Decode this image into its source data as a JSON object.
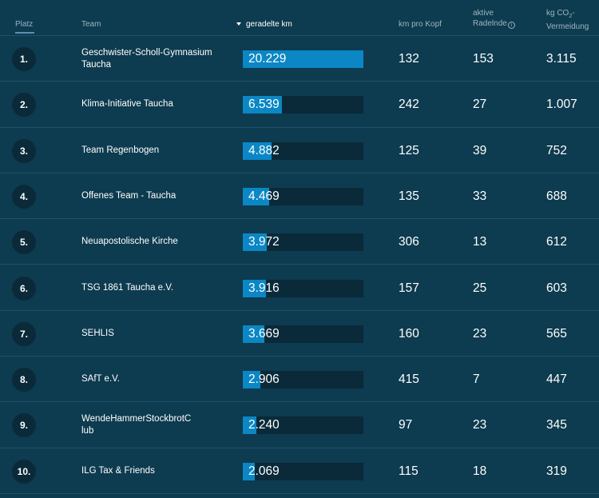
{
  "header": {
    "platz": "Platz",
    "team": "Team",
    "km": "geradelte km",
    "kopf": "km pro Kopf",
    "aktive_line1": "aktive",
    "aktive_line2": "Radelnde",
    "info_icon": "i",
    "co2_line1": "kg CO",
    "co2_sub": "2",
    "co2_suffix": "-",
    "co2_line2": "Vermeidung"
  },
  "rows": [
    {
      "rank": "1.",
      "team_line1": "Geschwister-Scholl-Gymnasium",
      "team_line2": "Taucha",
      "km": "20.229",
      "km_fraction": 1.0,
      "per_capita": "132",
      "active": "153",
      "co2": "3.115"
    },
    {
      "rank": "2.",
      "team_line1": "Klima-Initiative Taucha",
      "team_line2": "",
      "km": "6.539",
      "km_fraction": 0.3233,
      "per_capita": "242",
      "active": "27",
      "co2": "1.007"
    },
    {
      "rank": "3.",
      "team_line1": "Team Regenbogen",
      "team_line2": "",
      "km": "4.882",
      "km_fraction": 0.2413,
      "per_capita": "125",
      "active": "39",
      "co2": "752"
    },
    {
      "rank": "4.",
      "team_line1": "Offenes Team - Taucha",
      "team_line2": "",
      "km": "4.469",
      "km_fraction": 0.2209,
      "per_capita": "135",
      "active": "33",
      "co2": "688"
    },
    {
      "rank": "5.",
      "team_line1": "Neuapostolische Kirche",
      "team_line2": "",
      "km": "3.972",
      "km_fraction": 0.1964,
      "per_capita": "306",
      "active": "13",
      "co2": "612"
    },
    {
      "rank": "6.",
      "team_line1": "TSG 1861 Taucha e.V.",
      "team_line2": "",
      "km": "3.916",
      "km_fraction": 0.1936,
      "per_capita": "157",
      "active": "25",
      "co2": "603"
    },
    {
      "rank": "7.",
      "team_line1": "SEHLIS",
      "team_line2": "",
      "km": "3.669",
      "km_fraction": 0.1814,
      "per_capita": "160",
      "active": "23",
      "co2": "565"
    },
    {
      "rank": "8.",
      "team_line1": "SAfT e.V.",
      "team_line2": "",
      "km": "2.906",
      "km_fraction": 0.1437,
      "per_capita": "415",
      "active": "7",
      "co2": "447"
    },
    {
      "rank": "9.",
      "team_line1": "WendeHammerStockbrotC",
      "team_line2": "lub",
      "km": "2.240",
      "km_fraction": 0.1107,
      "per_capita": "97",
      "active": "23",
      "co2": "345"
    },
    {
      "rank": "10.",
      "team_line1": "ILG Tax & Friends",
      "team_line2": "",
      "km": "2.069",
      "km_fraction": 0.1023,
      "per_capita": "115",
      "active": "18",
      "co2": "319"
    }
  ],
  "colors": {
    "background": "#0d3b4f",
    "bar_fill": "#0a87c4",
    "bar_track": "#0a2a39"
  }
}
